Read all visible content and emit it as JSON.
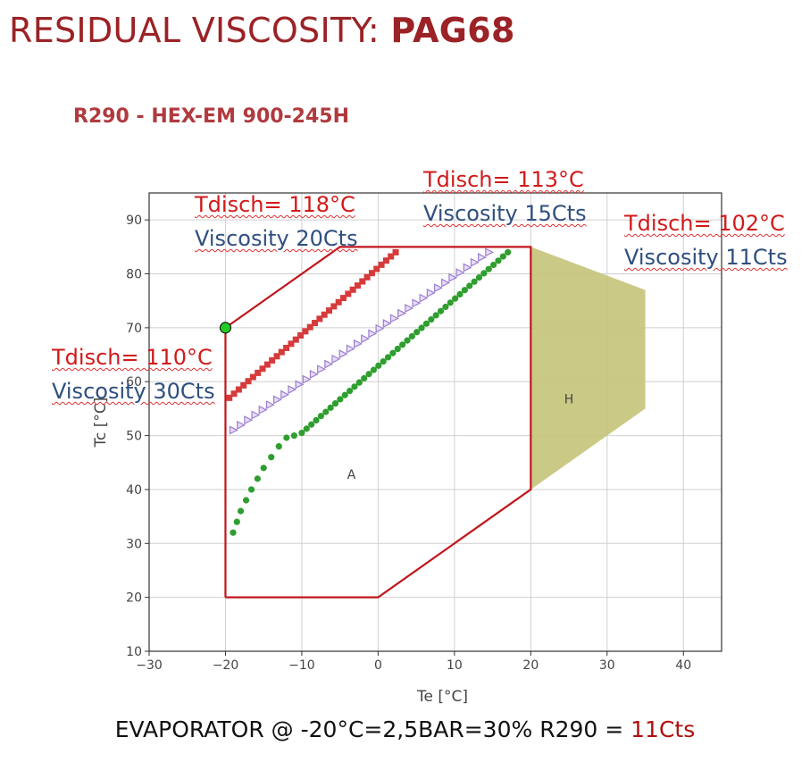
{
  "page": {
    "title_prefix": "RESIDUAL VISCOSITY: ",
    "title_bold": "PAG68",
    "subtitle": "R290 - HEX-EM 900-245H",
    "footer_prefix": "EVAPORATOR @ -20°C=2,5BAR=30% R290 = ",
    "footer_highlight": "11Cts"
  },
  "annotations": [
    {
      "name": "annotation-118",
      "tdisch": "Tdisch= 118°C",
      "viscosity": "Viscosity 20Cts"
    },
    {
      "name": "annotation-113",
      "tdisch": "Tdisch= 113°C",
      "viscosity": "Viscosity 15Cts"
    },
    {
      "name": "annotation-102",
      "tdisch": "Tdisch= 102°C",
      "viscosity": "Viscosity 11Cts"
    },
    {
      "name": "annotation-110",
      "tdisch": "Tdisch= 110°C",
      "viscosity": "Viscosity 30Cts"
    }
  ],
  "chart_data": {
    "type": "line",
    "xlabel": "Te [°C]",
    "ylabel": "Tc [°C]",
    "xlim": [
      -30,
      45
    ],
    "ylim": [
      10,
      95
    ],
    "xticks": [
      -30,
      -20,
      -10,
      0,
      10,
      20,
      30,
      40
    ],
    "xtick_labels": [
      "−30",
      "−20",
      "−10",
      "0",
      "10",
      "20",
      "30",
      "40"
    ],
    "yticks": [
      10,
      20,
      30,
      40,
      50,
      60,
      70,
      80,
      90
    ],
    "grid": true,
    "colors": {
      "envelope": "#c0161c",
      "region_h": "#c4c479",
      "square": "#d63a3a",
      "triangle": "#9b7fd0",
      "circle": "#2e9e2e",
      "marker": "#22cc22"
    },
    "envelope_a": {
      "label": "A",
      "label_at": [
        -3.5,
        42
      ],
      "x": [
        -20,
        -20,
        -5,
        20,
        20,
        0,
        -20
      ],
      "y": [
        20,
        70,
        85,
        85,
        40,
        20,
        20
      ]
    },
    "region_h": {
      "label": "H",
      "label_at": [
        25,
        56
      ],
      "x": [
        20,
        20,
        35,
        35,
        20
      ],
      "y": [
        85,
        40,
        55,
        77,
        85
      ]
    },
    "marker_point": {
      "x": -20,
      "y": 70
    },
    "series": [
      {
        "marker": "square",
        "x_start": -19.5,
        "y_start": 57,
        "x_end": 2.3,
        "y_end": 84,
        "points": 36
      },
      {
        "marker": "triangle",
        "x_start": -19,
        "y_start": 51,
        "x_end": 14.5,
        "y_end": 84,
        "points": 36
      },
      {
        "marker": "circle",
        "low": {
          "x": [
            -19,
            -18.5,
            -18,
            -17.3,
            -16.6,
            -15.8,
            -15,
            -14,
            -13,
            -12,
            -11
          ],
          "y": [
            32,
            34,
            36,
            38,
            40,
            42,
            44,
            46,
            48,
            49.6,
            50
          ]
        },
        "x_start": -10,
        "y_start": 50.5,
        "x_end": 17,
        "y_end": 84,
        "points": 44
      }
    ]
  }
}
